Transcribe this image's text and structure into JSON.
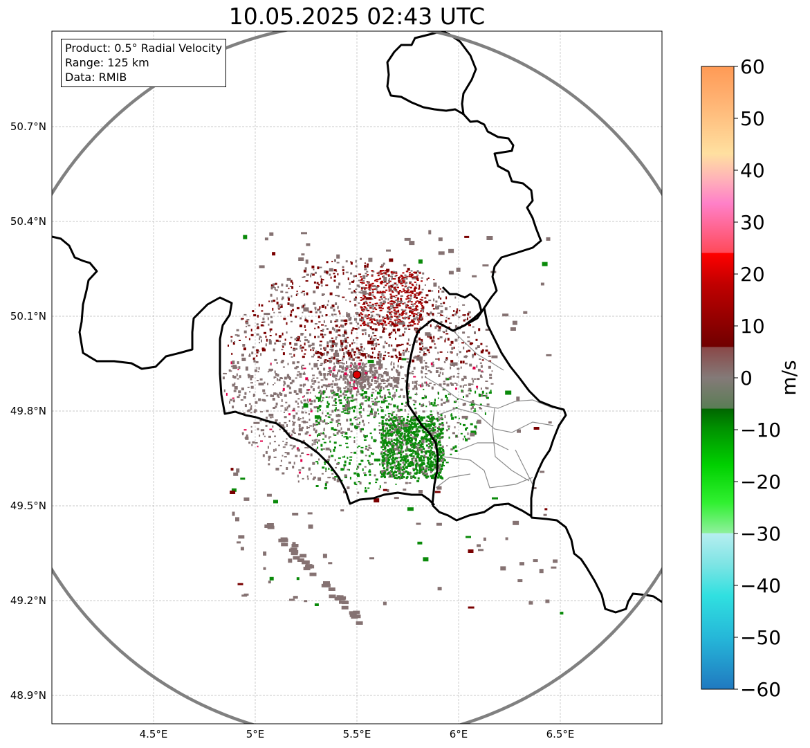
{
  "title": "10.05.2025 02:43 UTC",
  "info": {
    "product": "Product: 0.5° Radial Velocity",
    "range": "Range: 125 km",
    "data": "Data: RMIB"
  },
  "axes": {
    "lat_ticks": [
      "50.7°N",
      "50.4°N",
      "50.1°N",
      "49.8°N",
      "49.5°N",
      "49.2°N",
      "48.9°N"
    ],
    "lon_ticks": [
      "4.5°E",
      "5°E",
      "5.5°E",
      "6°E",
      "6.5°E"
    ],
    "lon_range": [
      4.0,
      7.0
    ],
    "lat_range": [
      48.8,
      51.0
    ],
    "grid": true
  },
  "radar_site": {
    "lon": 5.5,
    "lat": 49.915,
    "color": "#dd0000"
  },
  "colorbar": {
    "label": "m/s",
    "ticks": [
      "60",
      "50",
      "40",
      "30",
      "20",
      "10",
      "0",
      "−10",
      "−20",
      "−30",
      "−40",
      "−50",
      "−60"
    ],
    "range": [
      -60,
      60
    ]
  },
  "colors": {
    "range_ring": "#808080",
    "border": "#000000",
    "inner_border": "#888888",
    "inbound": "#0a8a0a",
    "outbound": "#7a0000",
    "clutter": "#857272"
  }
}
